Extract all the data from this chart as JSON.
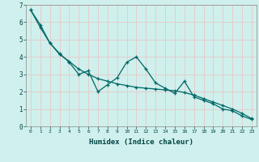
{
  "xlabel": "Humidex (Indice chaleur)",
  "bg_color": "#cff0ec",
  "grid_color": "#e8c8c8",
  "line_color": "#006666",
  "xlim": [
    -0.5,
    23.5
  ],
  "ylim": [
    0,
    7
  ],
  "xticks": [
    0,
    1,
    2,
    3,
    4,
    5,
    6,
    7,
    8,
    9,
    10,
    11,
    12,
    13,
    14,
    15,
    16,
    17,
    18,
    19,
    20,
    21,
    22,
    23
  ],
  "yticks": [
    0,
    1,
    2,
    3,
    4,
    5,
    6,
    7
  ],
  "line1_x": [
    0,
    1,
    2,
    3,
    4,
    5,
    6,
    7,
    8,
    9,
    10,
    11,
    12,
    13,
    14,
    15,
    16,
    17,
    18,
    19,
    20,
    21,
    22,
    23
  ],
  "line1_y": [
    6.7,
    5.7,
    4.8,
    4.2,
    3.7,
    3.0,
    3.2,
    2.0,
    2.4,
    2.8,
    3.7,
    4.0,
    3.3,
    2.5,
    2.2,
    1.9,
    2.6,
    1.7,
    1.5,
    1.3,
    1.0,
    0.9,
    0.6,
    0.4
  ],
  "line2_x": [
    0,
    1,
    2,
    3,
    4,
    5,
    6,
    7,
    8,
    9,
    10,
    11,
    12,
    13,
    14,
    15,
    16,
    17,
    18,
    19,
    20,
    21,
    22,
    23
  ],
  "line2_y": [
    6.7,
    5.85,
    4.8,
    4.15,
    3.75,
    3.3,
    3.0,
    2.75,
    2.6,
    2.45,
    2.35,
    2.25,
    2.2,
    2.15,
    2.1,
    2.05,
    1.95,
    1.8,
    1.6,
    1.4,
    1.2,
    1.0,
    0.75,
    0.45
  ]
}
